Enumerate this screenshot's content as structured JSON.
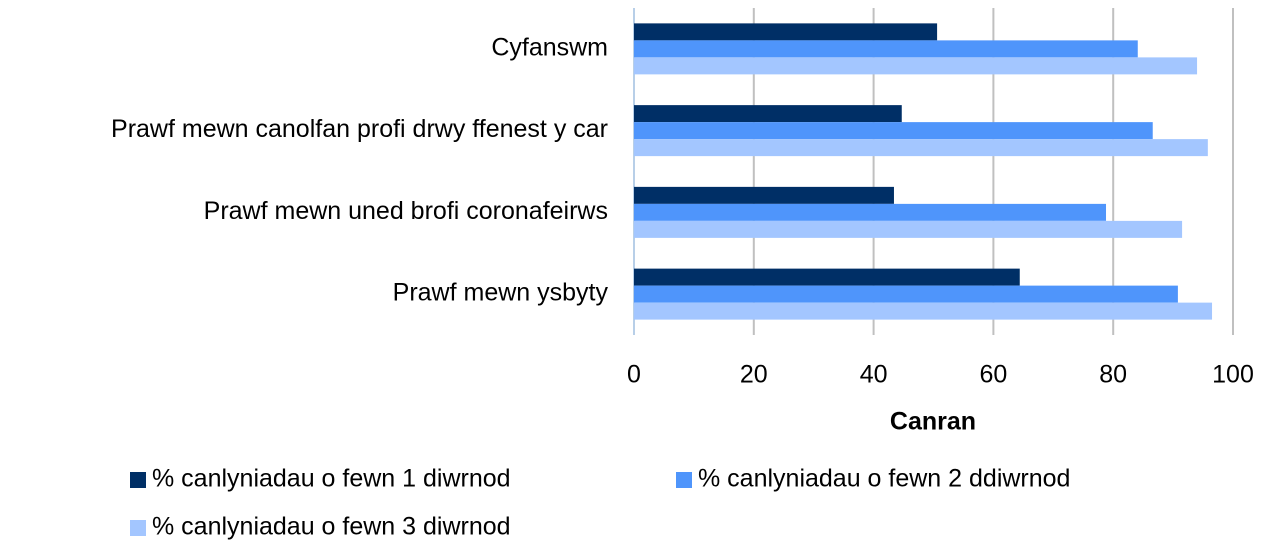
{
  "chart_data": {
    "type": "hbar",
    "categories": [
      "Cyfanswm",
      "Prawf mewn canolfan profi drwy ffenest y car",
      "Prawf mewn uned brofi coronafeirws",
      "Prawf mewn ysbyty"
    ],
    "series": [
      {
        "name": "% canlyniadau o fewn 1 diwrnod",
        "color": "#002f66",
        "values": [
          50.6,
          44.7,
          43.4,
          64.4
        ]
      },
      {
        "name": "% canlyniadau o fewn 2 ddiwrnod",
        "color": "#4f95fb",
        "values": [
          84.1,
          86.6,
          78.8,
          90.8
        ]
      },
      {
        "name": "% canlyniadau o fewn 3 diwrnod",
        "color": "#a3c6ff",
        "values": [
          94.0,
          95.8,
          91.5,
          96.5
        ]
      }
    ],
    "xlabel": "Canran",
    "xlim": [
      0,
      100
    ],
    "xticks": [
      0,
      20,
      40,
      60,
      80,
      100
    ],
    "grid": true
  }
}
